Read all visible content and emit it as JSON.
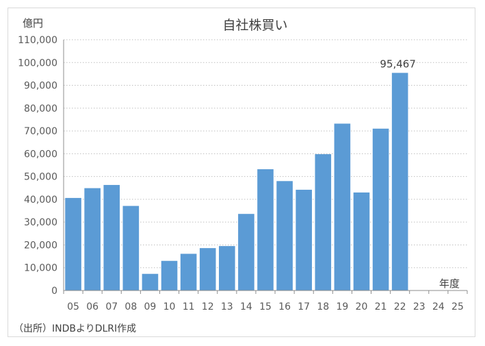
{
  "chart_data": {
    "type": "bar",
    "title": "自社株買い",
    "y_unit_label": "億円",
    "x_unit_label": "年度",
    "source_note": "（出所）INDBよりDLRI作成",
    "categories": [
      "05",
      "06",
      "07",
      "08",
      "09",
      "10",
      "11",
      "12",
      "13",
      "14",
      "15",
      "16",
      "17",
      "18",
      "19",
      "20",
      "21",
      "22",
      "23",
      "24",
      "25"
    ],
    "values": [
      40600,
      44900,
      46300,
      37100,
      7300,
      13000,
      16100,
      18600,
      19500,
      33600,
      53200,
      48000,
      44200,
      59800,
      73200,
      43000,
      71000,
      95467,
      null,
      null,
      null
    ],
    "value_labels": [
      {
        "category": "22",
        "text": "95,467"
      }
    ],
    "ylim": [
      0,
      110000
    ],
    "yticks": [
      "0",
      "10,000",
      "20,000",
      "30,000",
      "40,000",
      "50,000",
      "60,000",
      "70,000",
      "80,000",
      "90,000",
      "100,000",
      "110,000"
    ],
    "grid": true,
    "legend": "none",
    "bar_color": "#5b9bd5"
  }
}
